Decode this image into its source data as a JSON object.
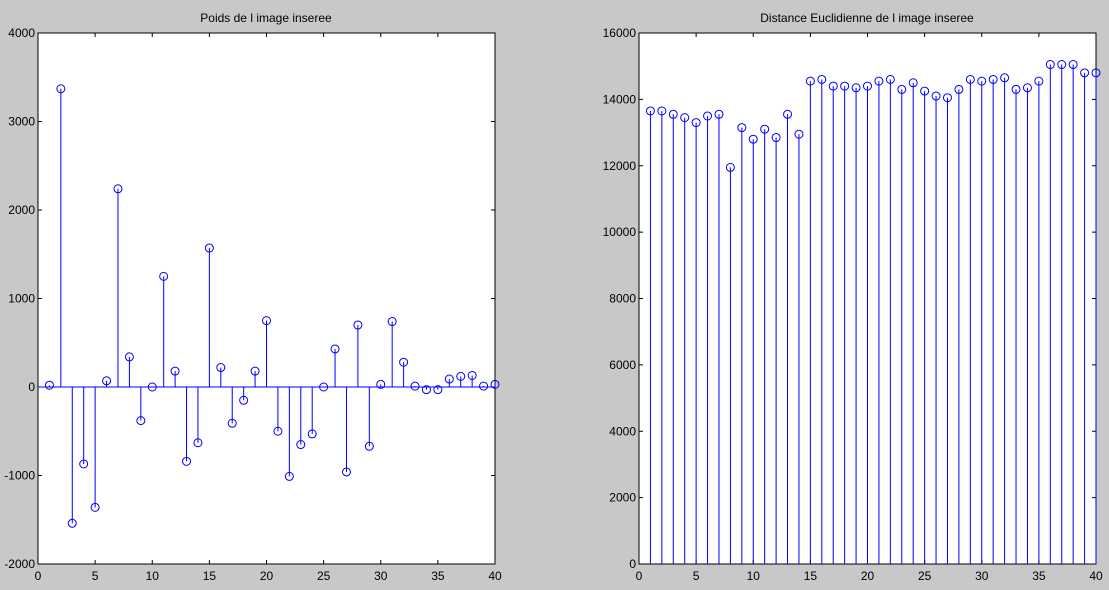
{
  "window": {
    "background": "#c8c8c8"
  },
  "chart_data": [
    {
      "type": "stem",
      "title": "Poids de l image inseree",
      "xlabel": "",
      "ylabel": "",
      "xlim": [
        0,
        40
      ],
      "ylim": [
        -2000,
        4000
      ],
      "xticks": [
        0,
        5,
        10,
        15,
        20,
        25,
        30,
        35,
        40
      ],
      "yticks": [
        -2000,
        -1000,
        0,
        1000,
        2000,
        3000,
        4000
      ],
      "grid": false,
      "color": "#0000ff",
      "x": [
        1,
        2,
        3,
        4,
        5,
        6,
        7,
        8,
        9,
        10,
        11,
        12,
        13,
        14,
        15,
        16,
        17,
        18,
        19,
        20,
        21,
        22,
        23,
        24,
        25,
        26,
        27,
        28,
        29,
        30,
        31,
        32,
        33,
        34,
        35,
        36,
        37,
        38,
        39,
        40
      ],
      "values": [
        20,
        3370,
        -1540,
        -870,
        -1360,
        70,
        2240,
        340,
        -380,
        0,
        1250,
        180,
        -840,
        -630,
        1570,
        220,
        -410,
        -150,
        180,
        750,
        -500,
        -1010,
        -650,
        -530,
        0,
        430,
        -960,
        700,
        -670,
        30,
        740,
        280,
        10,
        -30,
        -30,
        90,
        120,
        130,
        10,
        30
      ]
    },
    {
      "type": "stem",
      "title": "Distance Euclidienne de l image inseree",
      "xlabel": "",
      "ylabel": "",
      "xlim": [
        0,
        40
      ],
      "ylim": [
        0,
        16000
      ],
      "xticks": [
        0,
        5,
        10,
        15,
        20,
        25,
        30,
        35,
        40
      ],
      "yticks": [
        0,
        2000,
        4000,
        6000,
        8000,
        10000,
        12000,
        14000,
        16000
      ],
      "grid": false,
      "color": "#0000ff",
      "x": [
        1,
        2,
        3,
        4,
        5,
        6,
        7,
        8,
        9,
        10,
        11,
        12,
        13,
        14,
        15,
        16,
        17,
        18,
        19,
        20,
        21,
        22,
        23,
        24,
        25,
        26,
        27,
        28,
        29,
        30,
        31,
        32,
        33,
        34,
        35,
        36,
        37,
        38,
        39,
        40
      ],
      "values": [
        13650,
        13650,
        13550,
        13450,
        13300,
        13500,
        13550,
        11950,
        13150,
        12800,
        13100,
        12850,
        13550,
        12950,
        14550,
        14600,
        14400,
        14400,
        14350,
        14400,
        14550,
        14600,
        14300,
        14500,
        14250,
        14100,
        14050,
        14300,
        14600,
        14550,
        14600,
        14650,
        14300,
        14350,
        14550,
        15050,
        15050,
        15050,
        14800,
        14800
      ]
    }
  ]
}
